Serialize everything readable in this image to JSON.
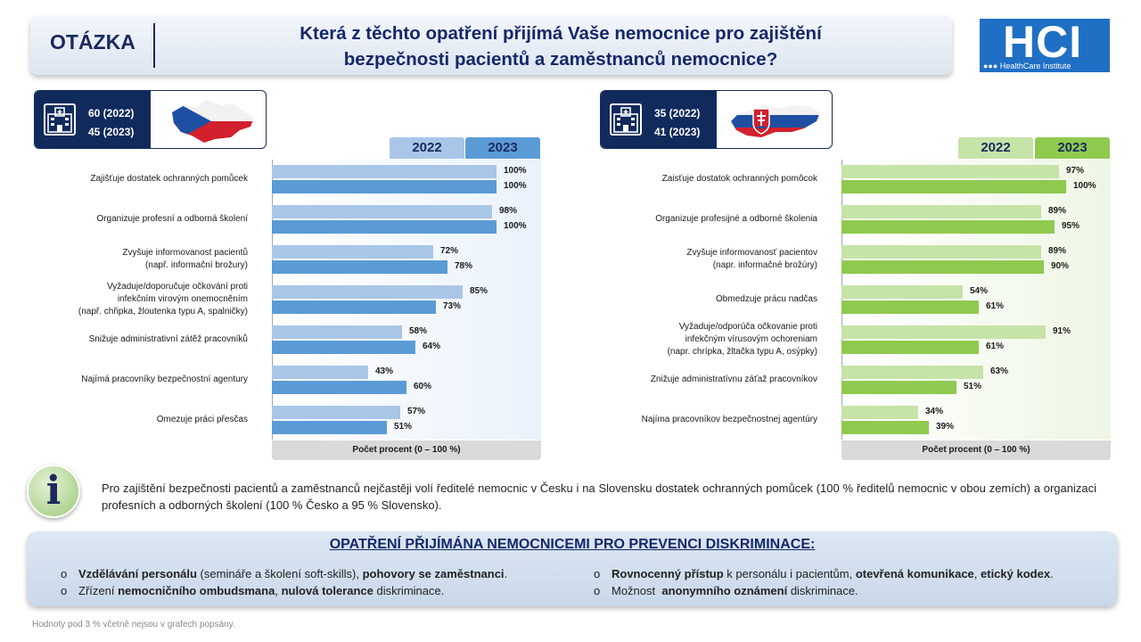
{
  "header": {
    "label": "OTÁZKA",
    "question_line1": "Která z těchto opatření přijímá Vaše nemocnice pro zajištění",
    "question_line2": "bezpečnosti pacientů a zaměstnanců nemocnice?"
  },
  "logo": {
    "name": "HCI",
    "subtitle": "●●● HealthCare Institute"
  },
  "cz": {
    "n2022": "60 (2022)",
    "n2023": "45 (2023)",
    "legend": [
      "2022",
      "2023"
    ],
    "axis_title": "Počet procent  (0 – 100 %)",
    "colors": {
      "y2022": "#a9c6e8",
      "y2023": "#5b9bd5"
    }
  },
  "sk": {
    "n2022": "35 (2022)",
    "n2023": "41 (2023)",
    "legend": [
      "2022",
      "2023"
    ],
    "axis_title": "Počet procent  (0 – 100 %)",
    "colors": {
      "y2022": "#c6e3a8",
      "y2023": "#8fca4f"
    }
  },
  "chart_data": [
    {
      "type": "bar",
      "orientation": "horizontal",
      "categories": [
        "Zajišťuje dostatek ochranných pomůcek",
        "Organizuje profesní a odborná školení",
        "Zvyšuje informovanost pacientů\n(např. informační brožury)",
        "Vyžaduje/doporučuje  očkování proti\ninfekčním virovým onemocněním\n(např. chřipka, žloutenka typu A, spalničky)",
        "Snižuje administrativní zátěž pracovníků",
        "Najímá pracovníky bezpečnostní agentury",
        "Omezuje práci přesčas"
      ],
      "series": [
        {
          "name": "2022",
          "values": [
            100,
            98,
            72,
            85,
            58,
            43,
            57
          ]
        },
        {
          "name": "2023",
          "values": [
            100,
            100,
            78,
            73,
            64,
            60,
            51
          ]
        }
      ],
      "xlabel": "Počet procent  (0 – 100 %)",
      "xlim": [
        0,
        100
      ],
      "value_suffix": "%"
    },
    {
      "type": "bar",
      "orientation": "horizontal",
      "categories": [
        "Zaisťuje dostatok ochranných pomôcok",
        "Organizuje profesijné a odborné školenia",
        "Zvyšuje informovanosť pacientov\n(napr. informačné brožúry)",
        "Obmedzuje prácu nadčas",
        "Vyžaduje/odporúča  očkovanie proti\ninfekčným vírusovým ochoreniam\n(napr. chrípka, žltačka typu A, osýpky)",
        "Znižuje administratívnu záťaž pracovníkov",
        "Najíma pracovníkov bezpečnostnej agentúry"
      ],
      "series": [
        {
          "name": "2022",
          "values": [
            97,
            89,
            89,
            54,
            91,
            63,
            34
          ]
        },
        {
          "name": "2023",
          "values": [
            100,
            95,
            90,
            61,
            61,
            51,
            39
          ]
        }
      ],
      "xlabel": "Počet procent  (0 – 100 %)",
      "xlim": [
        0,
        100
      ],
      "value_suffix": "%"
    }
  ],
  "info": {
    "icon": "i",
    "text": "Pro zajištění bezpečnosti pacientů a zaměstnanců nejčastěji volí ředitelé nemocnic v Česku i na Slovensku dostatek ochranných pomůcek (100 % ředitelů nemocnic v obou zemích) a organizaci profesních a odborných školení (100 % Česko a 95 % Slovensko)."
  },
  "discrimination": {
    "title": "OPATŘENÍ PŘIJÍMÁNA NEMOCNICEMI PRO PREVENCI DISKRIMINACE:",
    "bullet": "o",
    "items": [
      [
        {
          "b": true,
          "t": "Vzdělávání personálu"
        },
        {
          "b": false,
          "t": " (semináře a školení soft-skills), "
        },
        {
          "b": true,
          "t": "pohovory se zaměstnanci"
        },
        {
          "b": false,
          "t": "."
        }
      ],
      [
        {
          "b": false,
          "t": "Zřízení "
        },
        {
          "b": true,
          "t": "nemocničního ombudsmana"
        },
        {
          "b": false,
          "t": ", "
        },
        {
          "b": true,
          "t": "nulová tolerance"
        },
        {
          "b": false,
          "t": " diskriminace."
        }
      ],
      [
        {
          "b": true,
          "t": "Rovnocenný přístup"
        },
        {
          "b": false,
          "t": " k personálu i pacientům, "
        },
        {
          "b": true,
          "t": "otevřená komunikace"
        },
        {
          "b": false,
          "t": ", "
        },
        {
          "b": true,
          "t": "etický kodex"
        },
        {
          "b": false,
          "t": "."
        }
      ],
      [
        {
          "b": false,
          "t": "Možnost  "
        },
        {
          "b": true,
          "t": "anonymního oznámení"
        },
        {
          "b": false,
          "t": " diskriminace."
        }
      ]
    ]
  },
  "footnote": "Hodnoty pod 3 % včetně  nejsou v grafech popsány."
}
